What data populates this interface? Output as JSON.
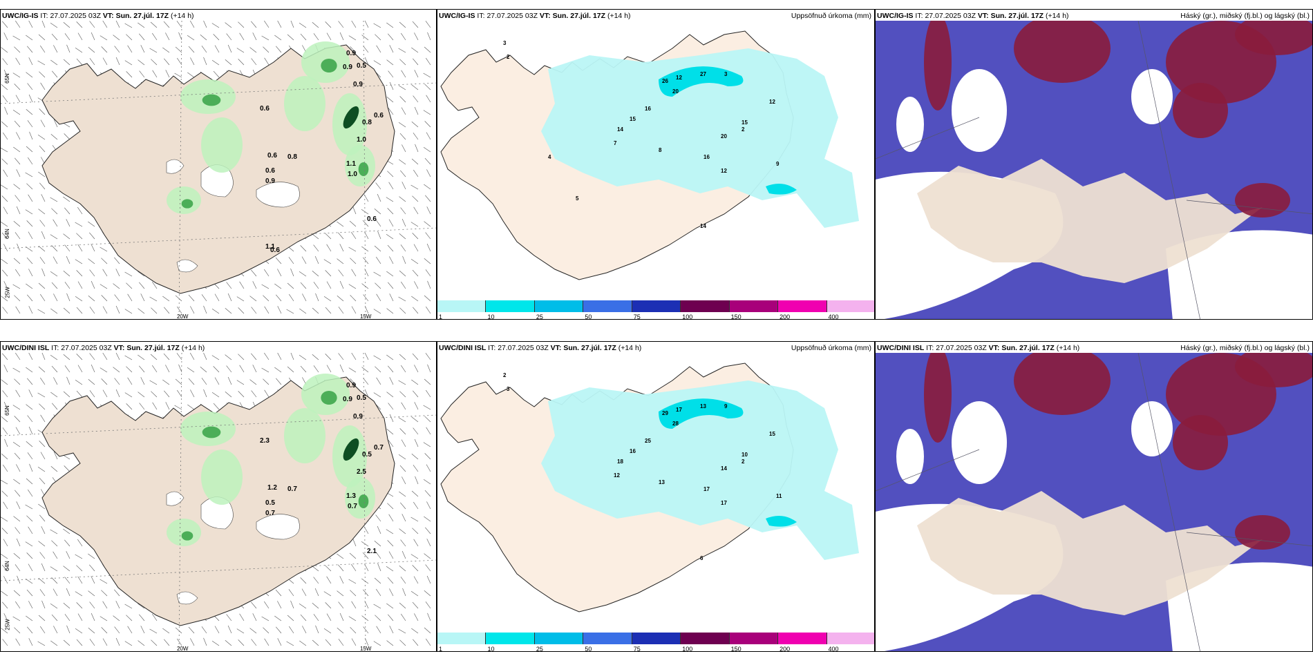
{
  "panels": [
    {
      "id": "r1c1",
      "model": "UWC/IG-IS",
      "it_label": "IT:",
      "it": "27.07.2025 03Z",
      "vt_label": "VT:",
      "vt": "Sun. 27.júl. 17Z",
      "lead": "(+14 h)",
      "right_title": "",
      "labels": [
        "0.9",
        "0.9",
        "0.5",
        "0.9",
        "0.6",
        "0.8",
        "0.6",
        "1.0",
        "0.6",
        "0.8",
        "0.6",
        "0.9",
        "1.0",
        "1.1",
        "0.6",
        "1.1",
        "0.6"
      ],
      "lon_labels": [
        "20W",
        "15W"
      ],
      "lat_labels": [
        "65N",
        "64N",
        "25W"
      ]
    },
    {
      "id": "r1c2",
      "model": "UWC/IG-IS",
      "it_label": "IT:",
      "it": "27.07.2025 03Z",
      "vt_label": "VT:",
      "vt": "Sun. 27.júl. 17Z",
      "lead": "(+14 h)",
      "right_title": "Uppsöfnuð úrkoma (mm)",
      "labels": [
        "3",
        "2",
        "26",
        "12",
        "27",
        "20",
        "16",
        "15",
        "14",
        "7",
        "8",
        "12",
        "20",
        "16",
        "15",
        "9",
        "12",
        "2",
        "3",
        "14",
        "5",
        "4"
      ]
    },
    {
      "id": "r1c3",
      "model": "UWC/IG-IS",
      "it_label": "IT:",
      "it": "27.07.2025 03Z",
      "vt_label": "VT:",
      "vt": "Sun. 27.júl. 17Z",
      "lead": "(+14 h)",
      "right_title": "Háský (gr.), miðský (fj.bl.) og lágský (bl.)"
    },
    {
      "id": "r2c1",
      "model": "UWC/DINI ISL",
      "it_label": "IT:",
      "it": "27.07.2025 03Z",
      "vt_label": "VT:",
      "vt": "Sun. 27.júl. 17Z",
      "lead": "(+14 h)",
      "right_title": "",
      "labels": [
        "0.9",
        "0.9",
        "0.5",
        "0.9",
        "2.3",
        "0.7",
        "0.5",
        "2.5",
        "1.2",
        "0.5",
        "0.7",
        "0.7",
        "0.7",
        "1.3",
        "2.1"
      ],
      "lon_labels": [
        "20W",
        "15W"
      ],
      "lat_labels": [
        "65N",
        "64N",
        "25W"
      ]
    },
    {
      "id": "r2c2",
      "model": "UWC/DINI ISL",
      "it_label": "IT:",
      "it": "27.07.2025 03Z",
      "vt_label": "VT:",
      "vt": "Sun. 27.júl. 17Z",
      "lead": "(+14 h)",
      "right_title": "Uppsöfnuð úrkoma (mm)",
      "labels": [
        "2",
        "3",
        "29",
        "17",
        "13",
        "28",
        "25",
        "16",
        "18",
        "12",
        "13",
        "17",
        "14",
        "17",
        "10",
        "11",
        "15",
        "2",
        "9",
        "6"
      ]
    },
    {
      "id": "r2c3",
      "model": "UWC/DINI ISL",
      "it_label": "IT:",
      "it": "27.07.2025 03Z",
      "vt_label": "VT:",
      "vt": "Sun. 27.júl. 17Z",
      "lead": "(+14 h)",
      "right_title": "Háský (gr.), miðský (fj.bl.) og lágský (bl.)"
    }
  ],
  "colorbar": {
    "ticks": [
      "1",
      "10",
      "25",
      "50",
      "75",
      "100",
      "150",
      "200",
      "400"
    ],
    "colors": [
      "#b8f6f6",
      "#00e6ea",
      "#00bde8",
      "#3a6fe6",
      "#1c2fb4",
      "#6e0050",
      "#a8007a",
      "#f000b0",
      "#f4b2ee"
    ]
  },
  "colors": {
    "land": "#eee0d2",
    "precip_light": "#baf6f6",
    "precip_mid": "#00dfe8",
    "cloud_high": "#8a1c3c",
    "cloud_mid": "#5250bf",
    "cloud_low": "#6080e8",
    "green_light": "#bdf2bd",
    "green_mid": "#4cae58",
    "green_dark": "#0e4e22"
  }
}
